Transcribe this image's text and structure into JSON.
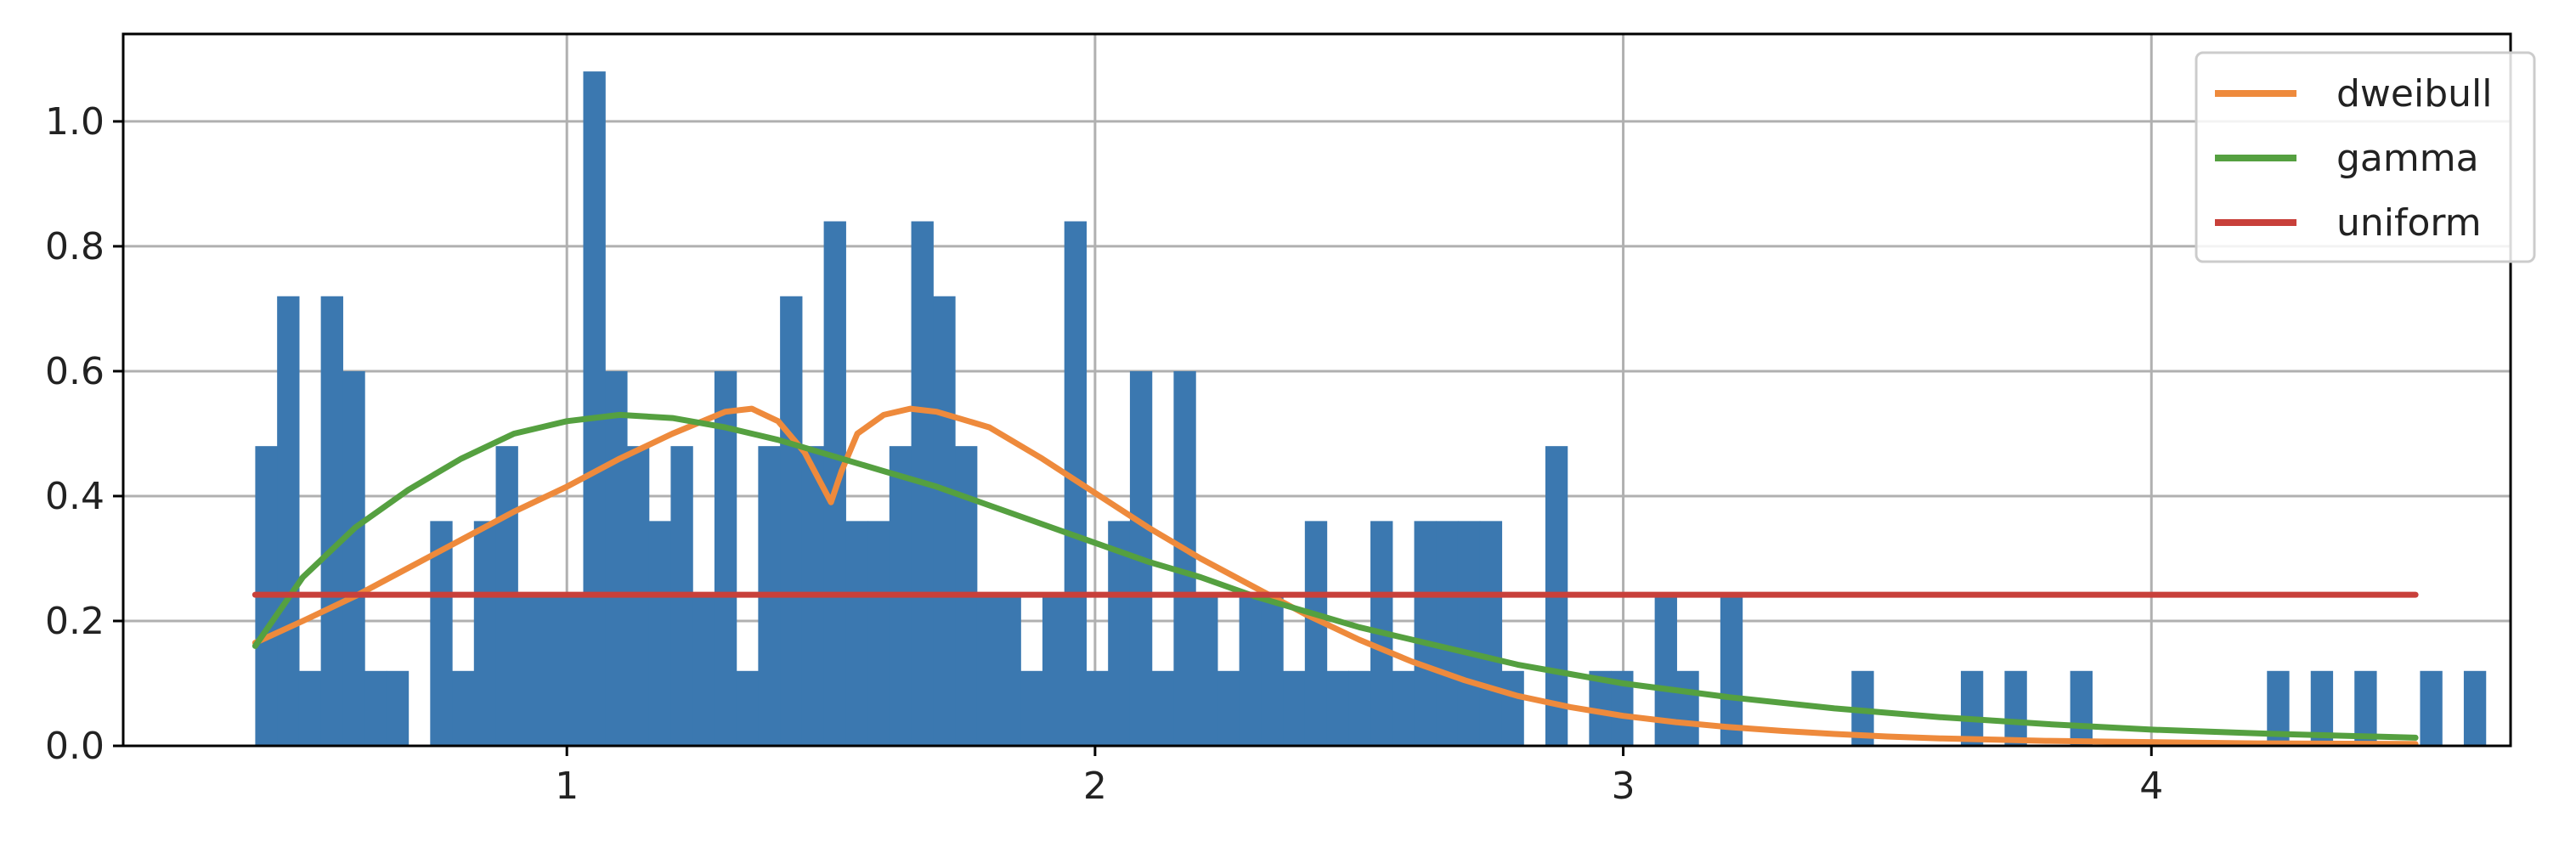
{
  "chart_data": {
    "type": "bar",
    "title": "",
    "xlabel": "",
    "ylabel": "",
    "xlim": [
      0.16,
      4.68
    ],
    "ylim": [
      0.0,
      1.14
    ],
    "grid": true,
    "legend_position": "top-right",
    "x_ticks": [
      {
        "value": 1,
        "label": "1"
      },
      {
        "value": 2,
        "label": "2"
      },
      {
        "value": 3,
        "label": "3"
      },
      {
        "value": 4,
        "label": "4"
      }
    ],
    "y_ticks": [
      {
        "value": 0.0,
        "label": "0.0"
      },
      {
        "value": 0.2,
        "label": "0.2"
      },
      {
        "value": 0.4,
        "label": "0.4"
      },
      {
        "value": 0.6,
        "label": "0.6"
      },
      {
        "value": 0.8,
        "label": "0.8"
      },
      {
        "value": 1.0,
        "label": "1.0"
      }
    ],
    "histogram": {
      "color": "#3b78b0",
      "bin_start": 0.41,
      "bin_width": 0.0414,
      "values": [
        0.48,
        0.72,
        0.12,
        0.72,
        0.6,
        0.12,
        0.12,
        0.0,
        0.36,
        0.12,
        0.36,
        0.48,
        0.24,
        0.24,
        0.24,
        1.08,
        0.6,
        0.48,
        0.36,
        0.48,
        0.24,
        0.6,
        0.12,
        0.48,
        0.72,
        0.48,
        0.84,
        0.36,
        0.36,
        0.48,
        0.84,
        0.72,
        0.48,
        0.24,
        0.24,
        0.12,
        0.24,
        0.84,
        0.12,
        0.36,
        0.6,
        0.12,
        0.6,
        0.24,
        0.12,
        0.24,
        0.24,
        0.12,
        0.36,
        0.12,
        0.12,
        0.36,
        0.12,
        0.36,
        0.36,
        0.36,
        0.36,
        0.12,
        0.0,
        0.48,
        0.0,
        0.12,
        0.12,
        0.0,
        0.24,
        0.12,
        0.0,
        0.24,
        0.0,
        0.0,
        0.0,
        0.0,
        0.0,
        0.12,
        0.0,
        0.0,
        0.0,
        0.0,
        0.12,
        0.0,
        0.12,
        0.0,
        0.0,
        0.12,
        0.0,
        0.0,
        0.0,
        0.0,
        0.0,
        0.0,
        0.0,
        0.0,
        0.12,
        0.0,
        0.12,
        0.0,
        0.12,
        0.0,
        0.0,
        0.12,
        0.0,
        0.12
      ]
    },
    "series": [
      {
        "name": "dweibull",
        "color": "#ee8a3c",
        "x": [
          0.41,
          0.5,
          0.6,
          0.7,
          0.8,
          0.9,
          1.0,
          1.1,
          1.2,
          1.3,
          1.35,
          1.4,
          1.45,
          1.5,
          1.52,
          1.55,
          1.6,
          1.65,
          1.7,
          1.8,
          1.9,
          2.0,
          2.1,
          2.2,
          2.3,
          2.4,
          2.5,
          2.6,
          2.7,
          2.8,
          2.9,
          3.0,
          3.1,
          3.2,
          3.3,
          3.4,
          3.5,
          3.6,
          3.7,
          3.8,
          3.9,
          4.0,
          4.2,
          4.5
        ],
        "y": [
          0.165,
          0.2,
          0.24,
          0.285,
          0.33,
          0.375,
          0.415,
          0.46,
          0.5,
          0.535,
          0.54,
          0.52,
          0.47,
          0.39,
          0.44,
          0.5,
          0.53,
          0.54,
          0.535,
          0.51,
          0.46,
          0.405,
          0.35,
          0.3,
          0.255,
          0.21,
          0.17,
          0.135,
          0.105,
          0.08,
          0.062,
          0.048,
          0.038,
          0.03,
          0.024,
          0.019,
          0.015,
          0.012,
          0.01,
          0.008,
          0.007,
          0.006,
          0.004,
          0.003
        ]
      },
      {
        "name": "gamma",
        "color": "#55a040",
        "x": [
          0.41,
          0.5,
          0.6,
          0.7,
          0.8,
          0.9,
          1.0,
          1.1,
          1.2,
          1.3,
          1.4,
          1.5,
          1.6,
          1.7,
          1.8,
          1.9,
          2.0,
          2.1,
          2.2,
          2.3,
          2.4,
          2.5,
          2.6,
          2.7,
          2.8,
          2.9,
          3.0,
          3.2,
          3.4,
          3.6,
          3.8,
          4.0,
          4.2,
          4.5
        ],
        "y": [
          0.16,
          0.27,
          0.35,
          0.41,
          0.46,
          0.5,
          0.52,
          0.53,
          0.525,
          0.51,
          0.49,
          0.465,
          0.44,
          0.415,
          0.385,
          0.355,
          0.325,
          0.295,
          0.27,
          0.24,
          0.215,
          0.19,
          0.17,
          0.15,
          0.13,
          0.115,
          0.1,
          0.078,
          0.06,
          0.046,
          0.035,
          0.026,
          0.02,
          0.013
        ]
      },
      {
        "name": "uniform",
        "color": "#c8403a",
        "x": [
          0.41,
          4.5
        ],
        "y": [
          0.242,
          0.242
        ]
      }
    ]
  }
}
